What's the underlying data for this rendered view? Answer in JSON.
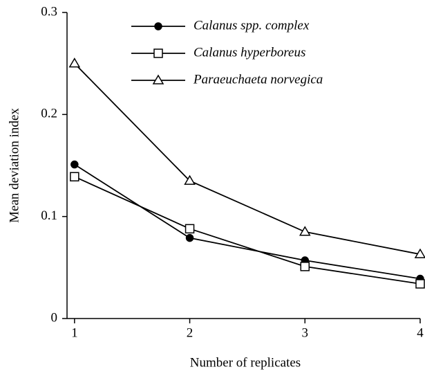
{
  "chart_data": {
    "type": "line",
    "x_label": "Number of replicates",
    "y_label": "Mean deviation index",
    "x": [
      1,
      2,
      3,
      4
    ],
    "xlim": [
      0.935,
      4
    ],
    "xticks": [
      1,
      2,
      3,
      4
    ],
    "ylim": [
      0,
      0.3
    ],
    "yticks": [
      0,
      0.1,
      0.2,
      0.3
    ],
    "series": [
      {
        "name": "Calanus spp. complex",
        "color": "#000000",
        "marker": "circle",
        "filled": true,
        "values": [
          0.151,
          0.079,
          0.057,
          0.039
        ]
      },
      {
        "name": "Calanus hyperboreus",
        "color": "#000000",
        "marker": "square",
        "filled": false,
        "values": [
          0.139,
          0.088,
          0.051,
          0.034
        ]
      },
      {
        "name": "Paraeuchaeta norvegica",
        "color": "#000000",
        "marker": "triangle",
        "filled": false,
        "values": [
          0.25,
          0.135,
          0.085,
          0.063
        ]
      }
    ]
  }
}
